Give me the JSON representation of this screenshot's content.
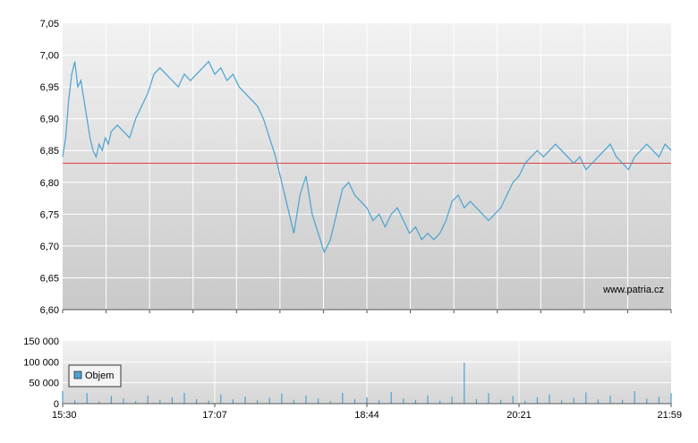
{
  "chart_data": [
    {
      "type": "line",
      "panel": "price",
      "x_ticks": [
        "15:30",
        "17:07",
        "18:44",
        "20:21",
        "21:59"
      ],
      "y_ticks": [
        "6,60",
        "6,65",
        "6,70",
        "6,75",
        "6,80",
        "6,85",
        "6,90",
        "6,95",
        "7,00",
        "7,05"
      ],
      "ylim": [
        6.6,
        7.05
      ],
      "reference_line": 6.83,
      "watermark": "www.patria.cz",
      "grid": true,
      "line_color": "#4aa3d1",
      "reference_color": "#e05050",
      "series": [
        {
          "x_fraction": [
            0.0,
            0.005,
            0.01,
            0.015,
            0.02,
            0.025,
            0.03,
            0.035,
            0.04,
            0.045,
            0.05,
            0.055,
            0.06,
            0.065,
            0.07,
            0.075,
            0.08,
            0.09,
            0.1,
            0.11,
            0.12,
            0.13,
            0.14,
            0.15,
            0.16,
            0.17,
            0.18,
            0.19,
            0.2,
            0.21,
            0.22,
            0.23,
            0.24,
            0.25,
            0.26,
            0.27,
            0.28,
            0.29,
            0.3,
            0.31,
            0.32,
            0.33,
            0.34,
            0.35,
            0.36,
            0.37,
            0.38,
            0.39,
            0.4,
            0.41,
            0.42,
            0.43,
            0.44,
            0.45,
            0.46,
            0.47,
            0.48,
            0.49,
            0.5,
            0.51,
            0.52,
            0.53,
            0.54,
            0.55,
            0.56,
            0.57,
            0.58,
            0.59,
            0.6,
            0.61,
            0.62,
            0.63,
            0.64,
            0.65,
            0.66,
            0.67,
            0.68,
            0.69,
            0.7,
            0.71,
            0.72,
            0.73,
            0.74,
            0.75,
            0.76,
            0.77,
            0.78,
            0.79,
            0.8,
            0.81,
            0.82,
            0.83,
            0.84,
            0.85,
            0.86,
            0.87,
            0.88,
            0.89,
            0.9,
            0.91,
            0.92,
            0.93,
            0.94,
            0.95,
            0.96,
            0.97,
            0.98,
            0.99,
            1.0
          ],
          "values": [
            6.84,
            6.87,
            6.93,
            6.97,
            6.99,
            6.95,
            6.96,
            6.93,
            6.9,
            6.87,
            6.85,
            6.84,
            6.86,
            6.85,
            6.87,
            6.86,
            6.88,
            6.89,
            6.88,
            6.87,
            6.9,
            6.92,
            6.94,
            6.97,
            6.98,
            6.97,
            6.96,
            6.95,
            6.97,
            6.96,
            6.97,
            6.98,
            6.99,
            6.97,
            6.98,
            6.96,
            6.97,
            6.95,
            6.94,
            6.93,
            6.92,
            6.9,
            6.87,
            6.84,
            6.8,
            6.76,
            6.72,
            6.78,
            6.81,
            6.75,
            6.72,
            6.69,
            6.71,
            6.75,
            6.79,
            6.8,
            6.78,
            6.77,
            6.76,
            6.74,
            6.75,
            6.73,
            6.75,
            6.76,
            6.74,
            6.72,
            6.73,
            6.71,
            6.72,
            6.71,
            6.72,
            6.74,
            6.77,
            6.78,
            6.76,
            6.77,
            6.76,
            6.75,
            6.74,
            6.75,
            6.76,
            6.78,
            6.8,
            6.81,
            6.83,
            6.84,
            6.85,
            6.84,
            6.85,
            6.86,
            6.85,
            6.84,
            6.83,
            6.84,
            6.82,
            6.83,
            6.84,
            6.85,
            6.86,
            6.84,
            6.83,
            6.82,
            6.84,
            6.85,
            6.86,
            6.85,
            6.84,
            6.86,
            6.85
          ]
        }
      ]
    },
    {
      "type": "bar",
      "panel": "volume",
      "x_ticks": [
        "15:30",
        "17:07",
        "18:44",
        "20:21",
        "21:59"
      ],
      "y_ticks": [
        "0",
        "50 000",
        "100 000",
        "150 000"
      ],
      "ylim": [
        0,
        150000
      ],
      "legend": [
        "Objem"
      ],
      "legend_placement": "left",
      "bar_color": "#4aa3d1",
      "series": [
        {
          "name": "Objem",
          "x_fraction": [
            0.0,
            0.02,
            0.04,
            0.06,
            0.08,
            0.1,
            0.12,
            0.14,
            0.16,
            0.18,
            0.2,
            0.22,
            0.24,
            0.26,
            0.28,
            0.3,
            0.32,
            0.34,
            0.36,
            0.38,
            0.4,
            0.42,
            0.44,
            0.46,
            0.48,
            0.5,
            0.52,
            0.54,
            0.56,
            0.58,
            0.6,
            0.62,
            0.64,
            0.66,
            0.68,
            0.7,
            0.72,
            0.74,
            0.76,
            0.78,
            0.8,
            0.82,
            0.84,
            0.86,
            0.88,
            0.9,
            0.92,
            0.94,
            0.96,
            0.98,
            1.0
          ],
          "values": [
            30000,
            8000,
            25000,
            5000,
            18000,
            12000,
            6000,
            20000,
            9000,
            15000,
            26000,
            11000,
            7000,
            22000,
            10000,
            17000,
            8000,
            14000,
            24000,
            9000,
            19000,
            12000,
            6000,
            26000,
            10000,
            15000,
            8000,
            28000,
            12000,
            9000,
            20000,
            7000,
            16000,
            98000,
            11000,
            25000,
            9000,
            18000,
            7000,
            15000,
            22000,
            8000,
            14000,
            27000,
            10000,
            19000,
            9000,
            30000,
            12000,
            16000,
            25000
          ]
        }
      ]
    }
  ]
}
